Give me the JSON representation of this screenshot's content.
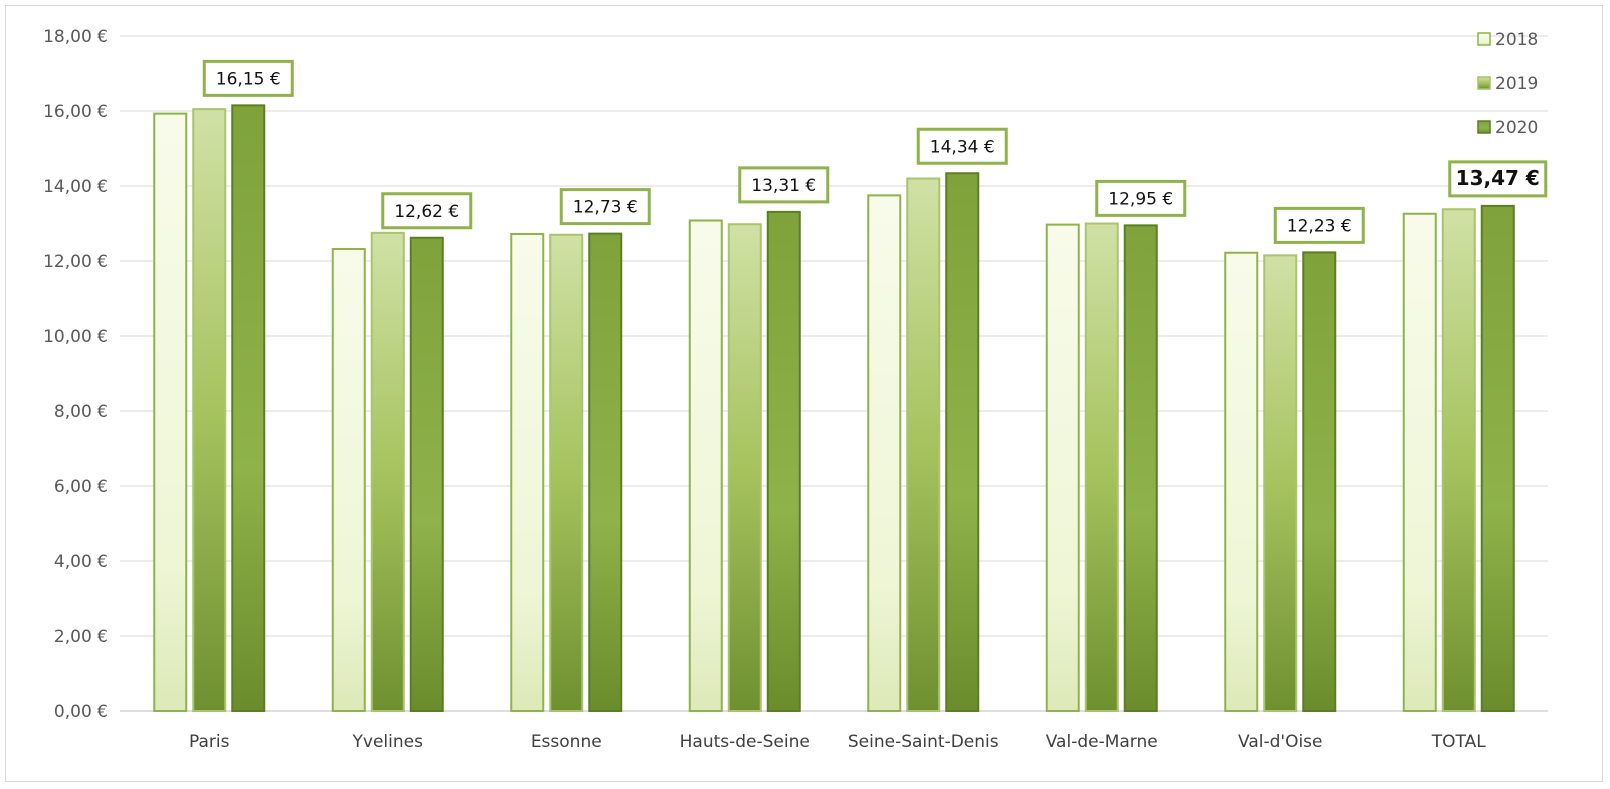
{
  "chart_data": {
    "type": "bar",
    "categories": [
      "Paris",
      "Yvelines",
      "Essonne",
      "Hauts-de-Seine",
      "Seine-Saint-Denis",
      "Val-de-Marne",
      "Val-d'Oise",
      "TOTAL"
    ],
    "series": [
      {
        "name": "2018",
        "values": [
          15.93,
          12.32,
          12.72,
          13.08,
          13.75,
          12.97,
          12.22,
          13.26
        ],
        "color": "#eef6d6"
      },
      {
        "name": "2019",
        "values": [
          16.05,
          12.75,
          12.7,
          12.98,
          14.2,
          13.0,
          12.15,
          13.38
        ],
        "color": "#b5cf6f"
      },
      {
        "name": "2020",
        "values": [
          16.15,
          12.62,
          12.73,
          13.31,
          14.34,
          12.95,
          12.23,
          13.47
        ],
        "color": "#7fa23a"
      }
    ],
    "data_labels": [
      "16,15 €",
      "12,62 €",
      "12,73 €",
      "13,31 €",
      "14,34 €",
      "12,95 €",
      "12,23 €",
      "13,47 €"
    ],
    "yticks": [
      "0,00 €",
      "2,00 €",
      "4,00 €",
      "6,00 €",
      "8,00 €",
      "10,00 €",
      "12,00 €",
      "14,00 €",
      "16,00 €",
      "18,00 €"
    ],
    "ylim": [
      0,
      18
    ],
    "grid": true,
    "legend_position": "top-right",
    "title": "",
    "xlabel": "",
    "ylabel": ""
  }
}
